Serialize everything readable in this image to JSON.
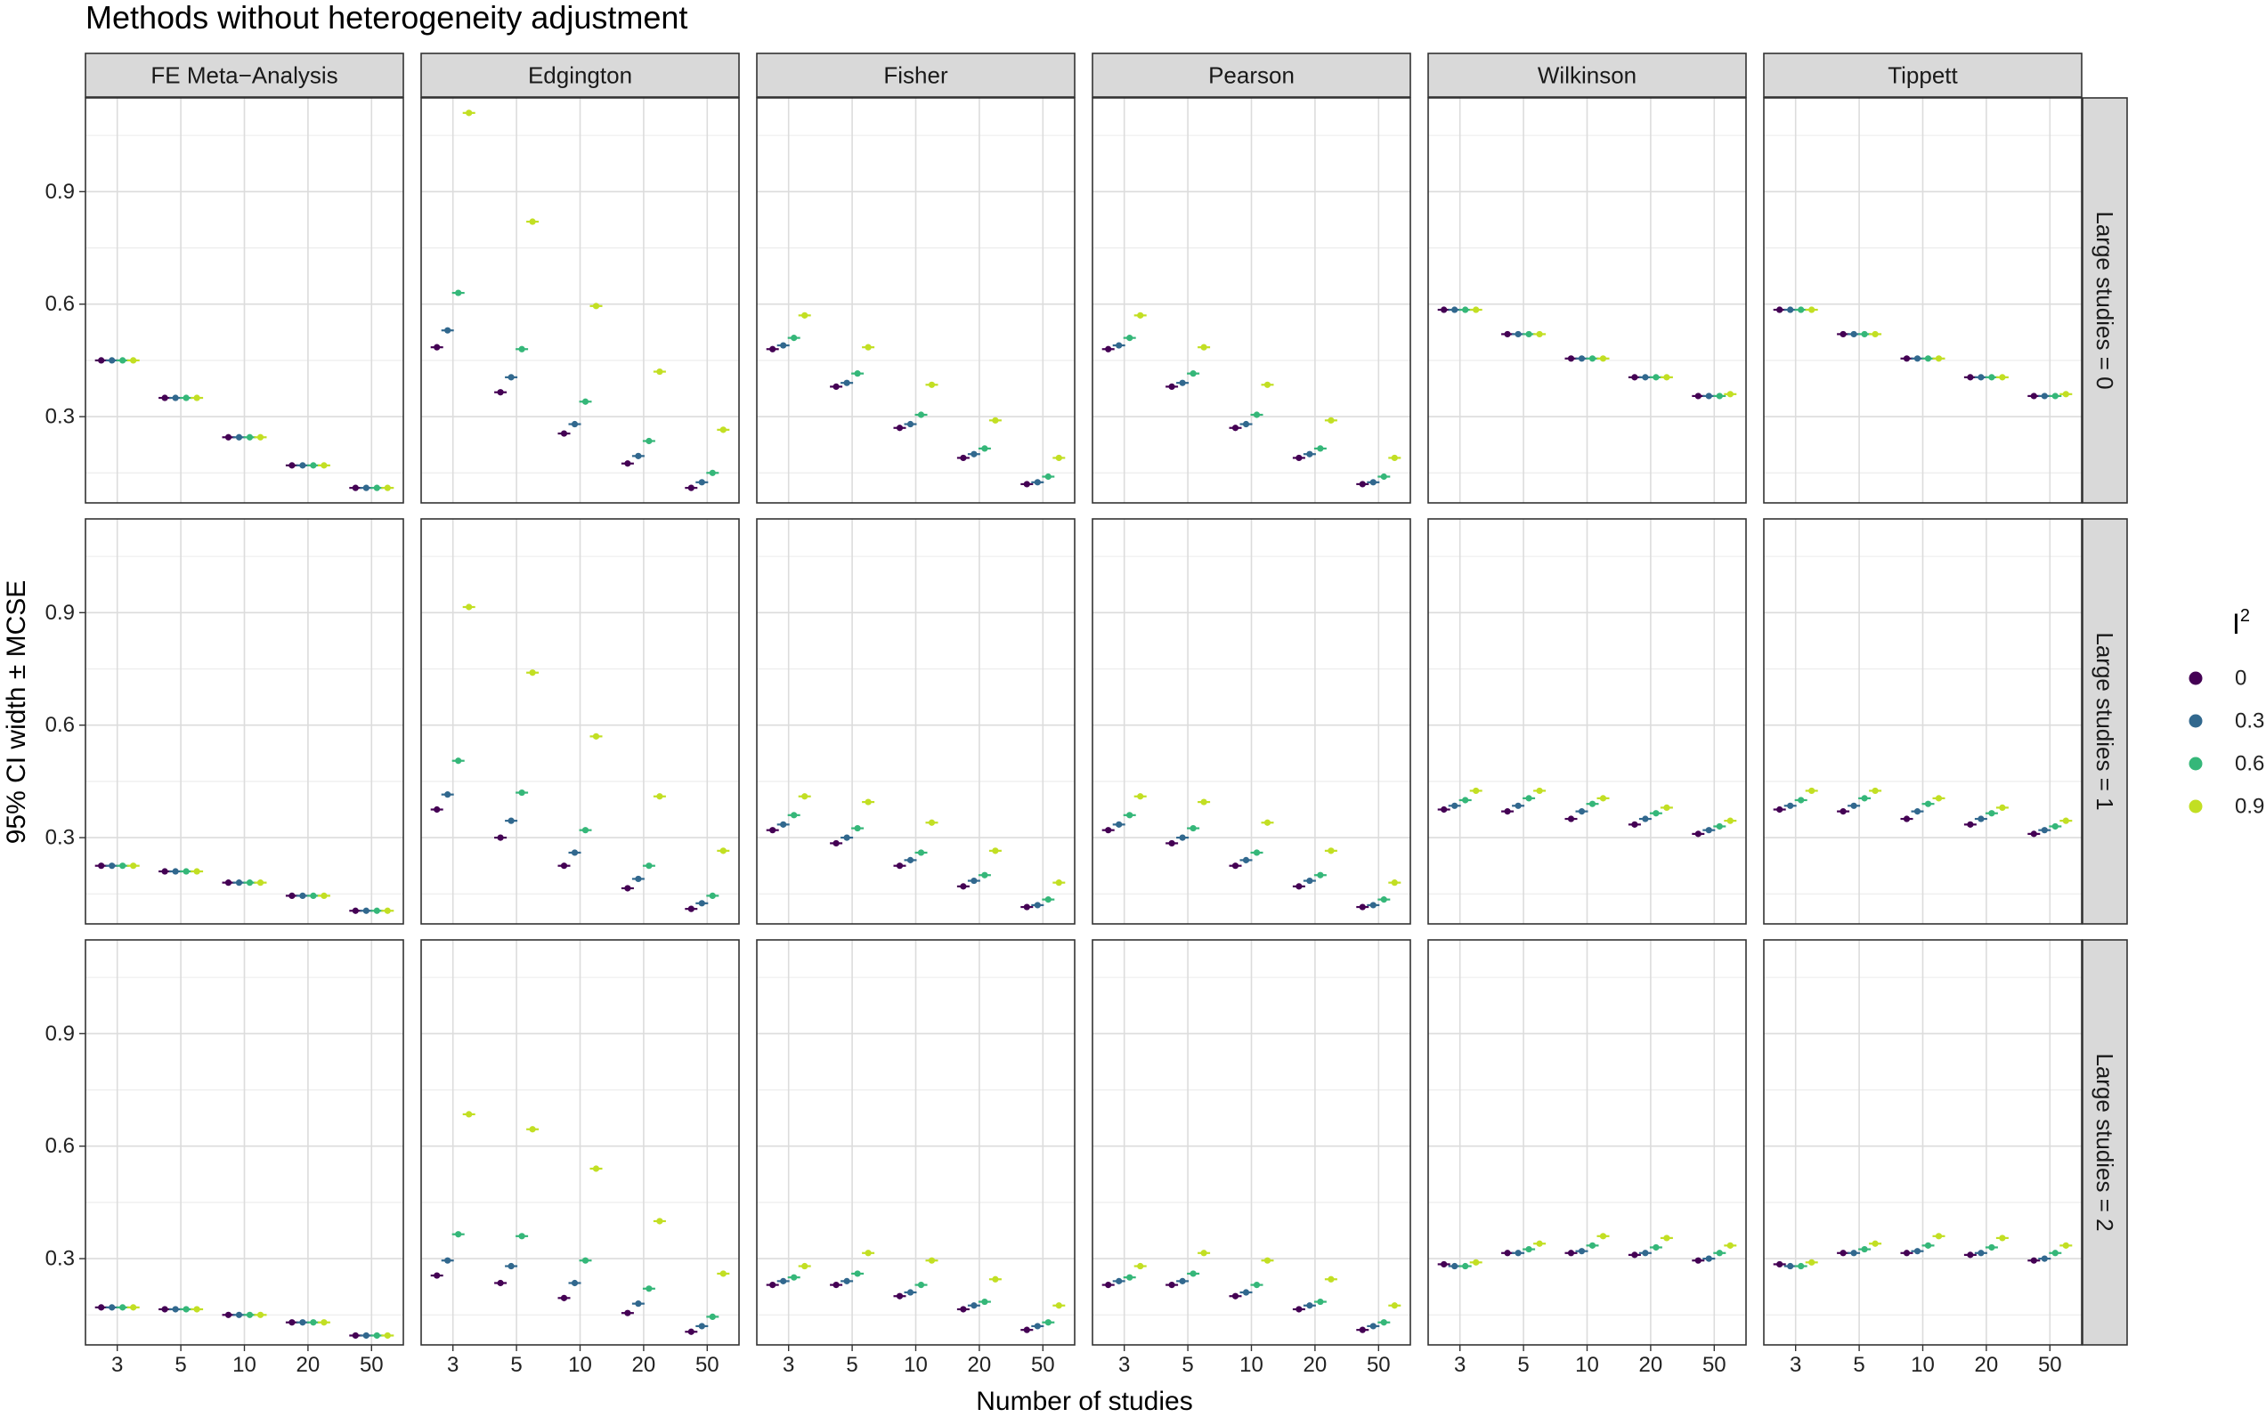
{
  "chart_data": {
    "type": "scatter",
    "title": "Methods without heterogeneity adjustment",
    "xlabel": "Number of studies",
    "ylabel": "95% CI width ± MCSE",
    "x_categories": [
      "3",
      "5",
      "10",
      "20",
      "50"
    ],
    "y_ticks": [
      0.3,
      0.6,
      0.9
    ],
    "y_tick_labels": [
      "0.3",
      "0.6",
      "0.9"
    ],
    "ylim": [
      0.07,
      1.15
    ],
    "grid": true,
    "legend": {
      "title": "I",
      "title_superscript": "2",
      "placement": "right",
      "entries": [
        {
          "label": "0",
          "color": "#440154"
        },
        {
          "label": "0.3",
          "color": "#31688e"
        },
        {
          "label": "0.6",
          "color": "#35b779"
        },
        {
          "label": "0.9",
          "color": "#c2df23"
        }
      ]
    },
    "columns": [
      "FE Meta−Analysis",
      "Edgington",
      "Fisher",
      "Pearson",
      "Wilkinson",
      "Tippett"
    ],
    "rows": [
      "Large studies = 0",
      "Large studies = 1",
      "Large studies = 2"
    ],
    "values": [
      [
        [
          [
            0.45,
            0.45,
            0.45,
            0.45
          ],
          [
            0.35,
            0.35,
            0.35,
            0.35
          ],
          [
            0.245,
            0.245,
            0.245,
            0.245
          ],
          [
            0.17,
            0.17,
            0.17,
            0.17
          ],
          [
            0.11,
            0.11,
            0.11,
            0.11
          ]
        ],
        [
          [
            0.485,
            0.53,
            0.63,
            1.11
          ],
          [
            0.365,
            0.405,
            0.48,
            0.82
          ],
          [
            0.255,
            0.28,
            0.34,
            0.595
          ],
          [
            0.175,
            0.195,
            0.235,
            0.42
          ],
          [
            0.11,
            0.125,
            0.15,
            0.265
          ]
        ],
        [
          [
            0.48,
            0.49,
            0.51,
            0.57
          ],
          [
            0.38,
            0.39,
            0.415,
            0.485
          ],
          [
            0.27,
            0.28,
            0.305,
            0.385
          ],
          [
            0.19,
            0.2,
            0.215,
            0.29
          ],
          [
            0.12,
            0.125,
            0.14,
            0.19
          ]
        ],
        [
          [
            0.48,
            0.49,
            0.51,
            0.57
          ],
          [
            0.38,
            0.39,
            0.415,
            0.485
          ],
          [
            0.27,
            0.28,
            0.305,
            0.385
          ],
          [
            0.19,
            0.2,
            0.215,
            0.29
          ],
          [
            0.12,
            0.125,
            0.14,
            0.19
          ]
        ],
        [
          [
            0.585,
            0.585,
            0.585,
            0.585
          ],
          [
            0.52,
            0.52,
            0.52,
            0.52
          ],
          [
            0.455,
            0.455,
            0.455,
            0.455
          ],
          [
            0.405,
            0.405,
            0.405,
            0.405
          ],
          [
            0.355,
            0.355,
            0.355,
            0.36
          ]
        ],
        [
          [
            0.585,
            0.585,
            0.585,
            0.585
          ],
          [
            0.52,
            0.52,
            0.52,
            0.52
          ],
          [
            0.455,
            0.455,
            0.455,
            0.455
          ],
          [
            0.405,
            0.405,
            0.405,
            0.405
          ],
          [
            0.355,
            0.355,
            0.355,
            0.36
          ]
        ]
      ],
      [
        [
          [
            0.225,
            0.225,
            0.225,
            0.225
          ],
          [
            0.21,
            0.21,
            0.21,
            0.21
          ],
          [
            0.18,
            0.18,
            0.18,
            0.18
          ],
          [
            0.145,
            0.145,
            0.145,
            0.145
          ],
          [
            0.105,
            0.105,
            0.105,
            0.105
          ]
        ],
        [
          [
            0.375,
            0.415,
            0.505,
            0.915
          ],
          [
            0.3,
            0.345,
            0.42,
            0.74
          ],
          [
            0.225,
            0.26,
            0.32,
            0.57
          ],
          [
            0.165,
            0.19,
            0.225,
            0.41
          ],
          [
            0.11,
            0.125,
            0.145,
            0.265
          ]
        ],
        [
          [
            0.32,
            0.335,
            0.36,
            0.41
          ],
          [
            0.285,
            0.3,
            0.325,
            0.395
          ],
          [
            0.225,
            0.24,
            0.26,
            0.34
          ],
          [
            0.17,
            0.185,
            0.2,
            0.265
          ],
          [
            0.115,
            0.12,
            0.135,
            0.18
          ]
        ],
        [
          [
            0.32,
            0.335,
            0.36,
            0.41
          ],
          [
            0.285,
            0.3,
            0.325,
            0.395
          ],
          [
            0.225,
            0.24,
            0.26,
            0.34
          ],
          [
            0.17,
            0.185,
            0.2,
            0.265
          ],
          [
            0.115,
            0.12,
            0.135,
            0.18
          ]
        ],
        [
          [
            0.375,
            0.385,
            0.4,
            0.425
          ],
          [
            0.37,
            0.385,
            0.405,
            0.425
          ],
          [
            0.35,
            0.37,
            0.39,
            0.405
          ],
          [
            0.335,
            0.35,
            0.365,
            0.38
          ],
          [
            0.31,
            0.32,
            0.33,
            0.345
          ]
        ],
        [
          [
            0.375,
            0.385,
            0.4,
            0.425
          ],
          [
            0.37,
            0.385,
            0.405,
            0.425
          ],
          [
            0.35,
            0.37,
            0.39,
            0.405
          ],
          [
            0.335,
            0.35,
            0.365,
            0.38
          ],
          [
            0.31,
            0.32,
            0.33,
            0.345
          ]
        ]
      ],
      [
        [
          [
            0.17,
            0.17,
            0.17,
            0.17
          ],
          [
            0.165,
            0.165,
            0.165,
            0.165
          ],
          [
            0.15,
            0.15,
            0.15,
            0.15
          ],
          [
            0.13,
            0.13,
            0.13,
            0.13
          ],
          [
            0.095,
            0.095,
            0.095,
            0.095
          ]
        ],
        [
          [
            0.255,
            0.295,
            0.365,
            0.685
          ],
          [
            0.235,
            0.28,
            0.36,
            0.645
          ],
          [
            0.195,
            0.235,
            0.295,
            0.54
          ],
          [
            0.155,
            0.18,
            0.22,
            0.4
          ],
          [
            0.105,
            0.12,
            0.145,
            0.26
          ]
        ],
        [
          [
            0.23,
            0.24,
            0.25,
            0.28
          ],
          [
            0.23,
            0.24,
            0.26,
            0.315
          ],
          [
            0.2,
            0.21,
            0.23,
            0.295
          ],
          [
            0.165,
            0.175,
            0.185,
            0.245
          ],
          [
            0.11,
            0.12,
            0.13,
            0.175
          ]
        ],
        [
          [
            0.23,
            0.24,
            0.25,
            0.28
          ],
          [
            0.23,
            0.24,
            0.26,
            0.315
          ],
          [
            0.2,
            0.21,
            0.23,
            0.295
          ],
          [
            0.165,
            0.175,
            0.185,
            0.245
          ],
          [
            0.11,
            0.12,
            0.13,
            0.175
          ]
        ],
        [
          [
            0.285,
            0.28,
            0.28,
            0.29
          ],
          [
            0.315,
            0.315,
            0.325,
            0.34
          ],
          [
            0.315,
            0.32,
            0.335,
            0.36
          ],
          [
            0.31,
            0.315,
            0.33,
            0.355
          ],
          [
            0.295,
            0.3,
            0.315,
            0.335
          ]
        ],
        [
          [
            0.285,
            0.28,
            0.28,
            0.29
          ],
          [
            0.315,
            0.315,
            0.325,
            0.34
          ],
          [
            0.315,
            0.32,
            0.335,
            0.36
          ],
          [
            0.31,
            0.315,
            0.33,
            0.355
          ],
          [
            0.295,
            0.3,
            0.315,
            0.335
          ]
        ]
      ]
    ]
  }
}
